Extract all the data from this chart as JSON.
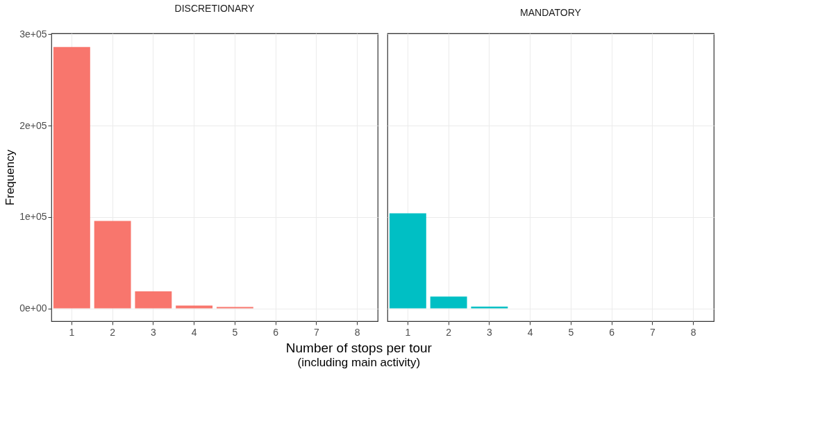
{
  "chart_data": [
    {
      "type": "bar",
      "title": "DISCRETIONARY",
      "xlabel": "Number of stops per tour",
      "ylabel": "Frequency",
      "annotations": [
        "(including main activity)"
      ],
      "categories": [
        "1",
        "2",
        "3",
        "4",
        "5",
        "6",
        "7",
        "8"
      ],
      "values": [
        286000,
        95600,
        18700,
        3000,
        1600,
        null,
        null,
        null
      ],
      "color": "#f8766d",
      "ylim": [
        -14000,
        301000
      ],
      "yticks": [
        {
          "value": 0,
          "label": "0e+00"
        },
        {
          "value": 100000,
          "label": "1e+05"
        },
        {
          "value": 200000,
          "label": "2e+05"
        },
        {
          "value": 300000,
          "label": "3e+05"
        }
      ],
      "grid": true
    },
    {
      "type": "bar",
      "title": "MANDATORY",
      "categories": [
        "1",
        "2",
        "3",
        "4",
        "5",
        "6",
        "7",
        "8"
      ],
      "values": [
        104000,
        13000,
        1900,
        null,
        null,
        null,
        null,
        null
      ],
      "color": "#00bfc4",
      "ylim": [
        -14000,
        301000
      ],
      "yticks": [
        0,
        100000,
        200000,
        300000
      ],
      "grid": true,
      "tick_labels": "x"
    }
  ]
}
